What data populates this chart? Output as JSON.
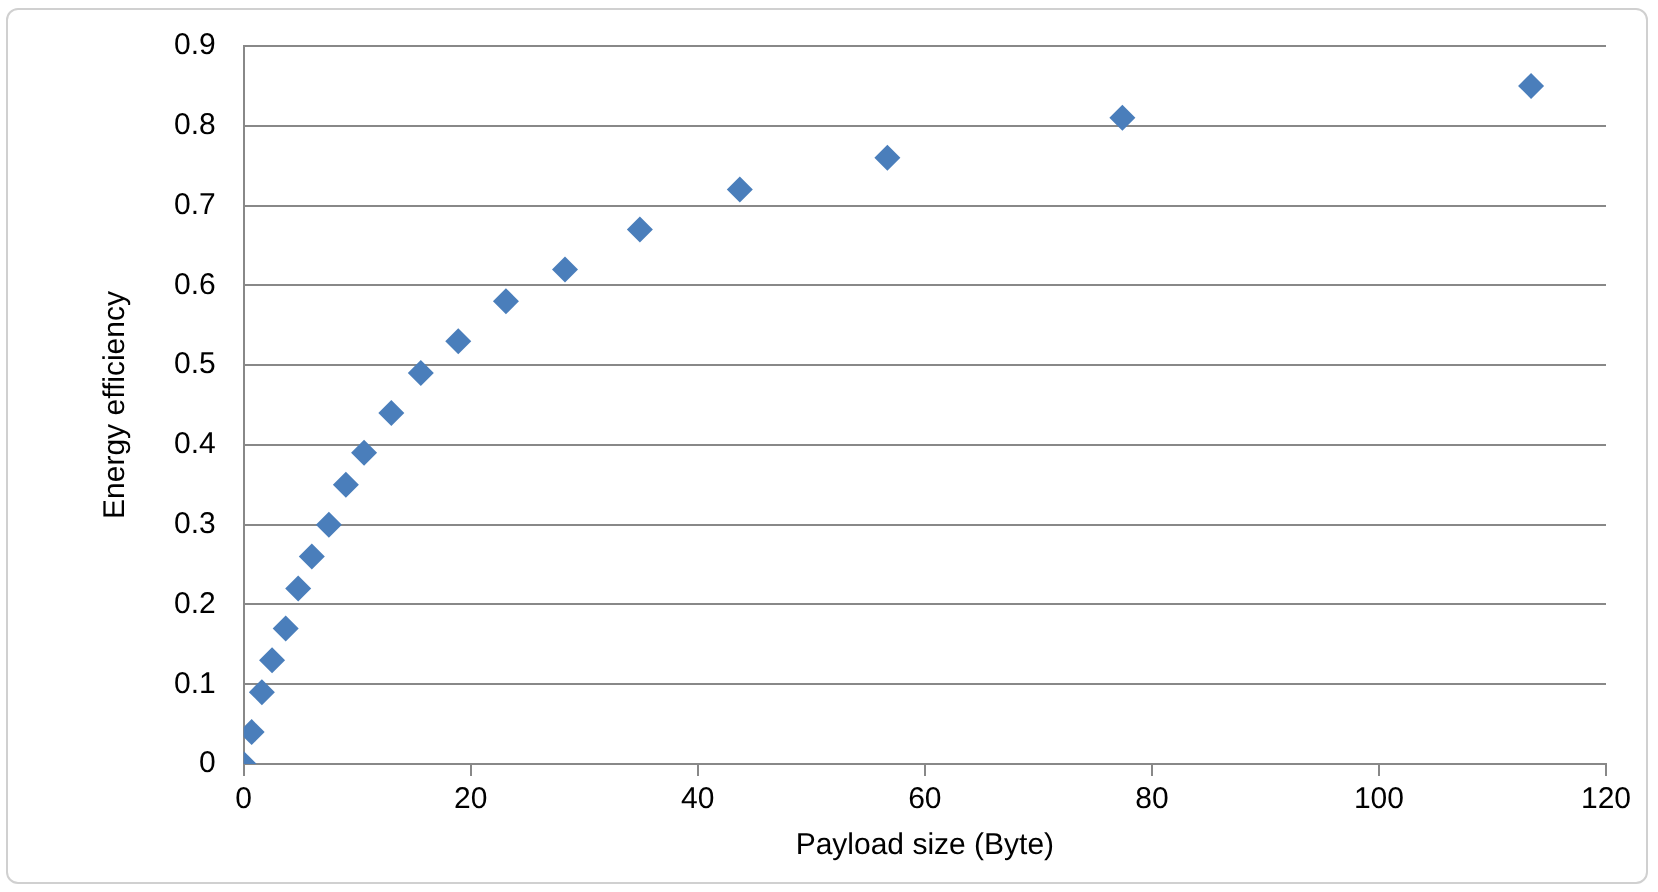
{
  "chart_data": {
    "type": "scatter",
    "xlabel": "Payload size (Byte)",
    "ylabel": "Energy efficiency",
    "series": [
      {
        "color": "#4a7ebb",
        "x": [
          0,
          0.7,
          1.6,
          2.5,
          3.7,
          4.8,
          6.0,
          7.5,
          9.0,
          10.6,
          13.0,
          15.6,
          18.9,
          23.1,
          28.3,
          34.9,
          43.7,
          56.7,
          77.4,
          113.4
        ],
        "values": [
          0,
          0.04,
          0.09,
          0.13,
          0.17,
          0.22,
          0.26,
          0.3,
          0.35,
          0.39,
          0.44,
          0.49,
          0.53,
          0.58,
          0.62,
          0.67,
          0.72,
          0.76,
          0.81,
          0.85
        ]
      }
    ],
    "xlim": [
      0,
      120
    ],
    "xticks": [
      0,
      20,
      40,
      60,
      80,
      100,
      120
    ],
    "ylim": [
      0,
      0.9
    ],
    "yticks": [
      0,
      0.1,
      0.2,
      0.3,
      0.4,
      0.5,
      0.6,
      0.7,
      0.8,
      0.9
    ],
    "grid": "y",
    "legend": false,
    "marker": "diamond"
  }
}
